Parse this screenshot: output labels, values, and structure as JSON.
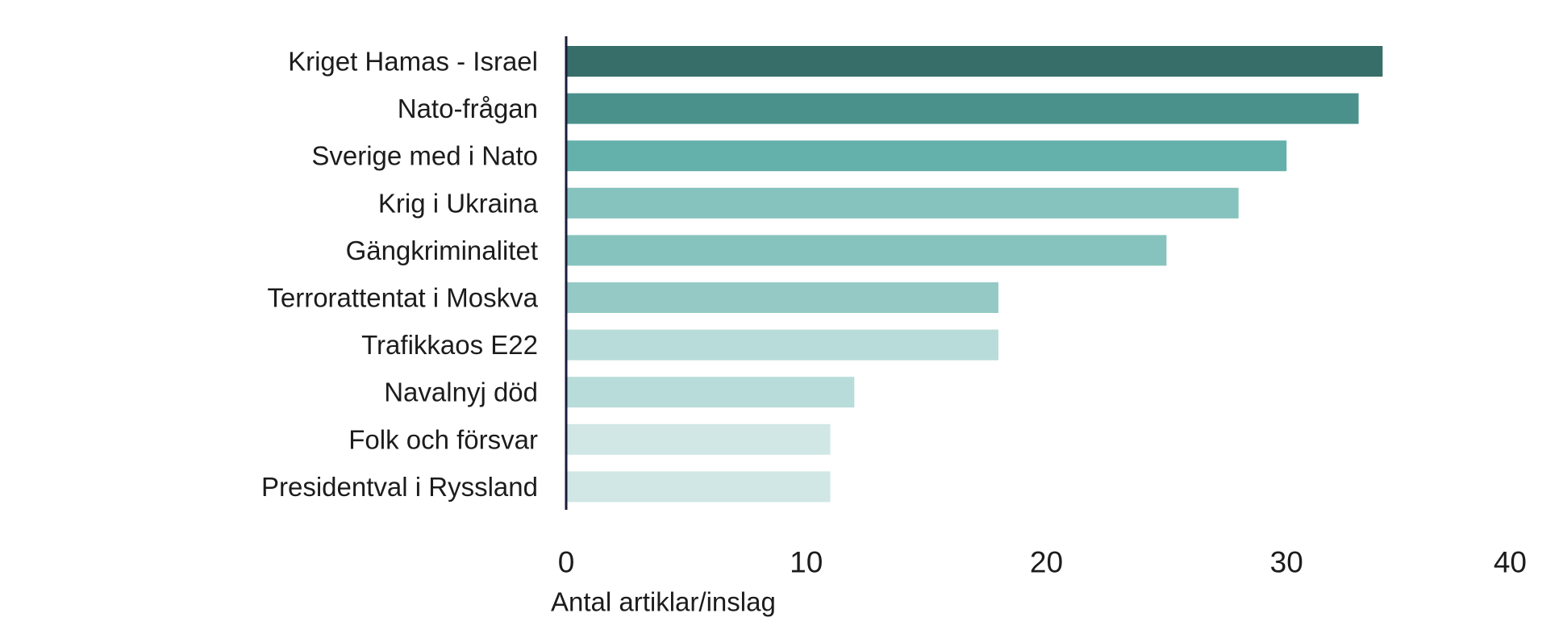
{
  "chart_data": {
    "type": "bar",
    "orientation": "horizontal",
    "title": "",
    "xlabel": "Antal artiklar/inslag",
    "ylabel": "",
    "xlim": [
      0,
      40
    ],
    "xticks": [
      0,
      10,
      20,
      30,
      40
    ],
    "grid": false,
    "categories": [
      "Kriget Hamas - Israel",
      "Nato-frågan",
      "Sverige med i Nato",
      "Krig i Ukraina",
      "Gängkriminalitet",
      "Terrorattentat i Moskva",
      "Trafikkaos E22",
      "Navalnyj död",
      "Folk och försvar",
      "Presidentval i Ryssland"
    ],
    "values": [
      34,
      33,
      30,
      28,
      25,
      18,
      18,
      12,
      11,
      11
    ],
    "colors": [
      "#376e69",
      "#4a918c",
      "#64b0ab",
      "#87c3be",
      "#87c3be",
      "#95c9c5",
      "#b8dcd9",
      "#b8dcd9",
      "#d0e7e6",
      "#d0e7e6"
    ],
    "axis_color": "#1b1b3a"
  }
}
